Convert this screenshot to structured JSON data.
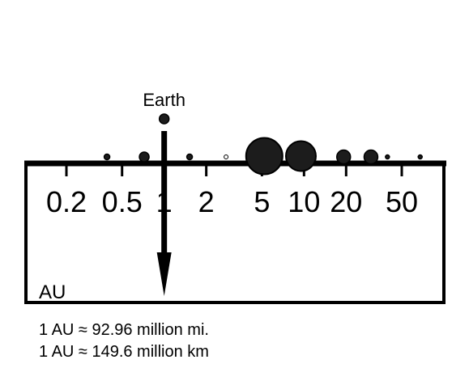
{
  "diagram": {
    "earth_label": "Earth",
    "unit_label": "AU",
    "scale": "log",
    "axis_range_au": [
      0.1,
      100
    ],
    "ticks": [
      {
        "value": 0.2,
        "label": "0.2"
      },
      {
        "value": 0.5,
        "label": "0.5"
      },
      {
        "value": 1,
        "label": "1"
      },
      {
        "value": 2,
        "label": "2"
      },
      {
        "value": 5,
        "label": "5"
      },
      {
        "value": 10,
        "label": "10"
      },
      {
        "value": 20,
        "label": "20"
      },
      {
        "value": 50,
        "label": "50"
      }
    ],
    "earth_distance_au": 1,
    "bodies": [
      {
        "distance_au": 0.39,
        "size": "small"
      },
      {
        "distance_au": 0.72,
        "size": "medium"
      },
      {
        "distance_au": 1.0,
        "size": "medium",
        "name": "earth"
      },
      {
        "distance_au": 1.52,
        "size": "small"
      },
      {
        "distance_au": 2.77,
        "size": "tiny",
        "hollow": true
      },
      {
        "distance_au": 5.2,
        "size": "huge"
      },
      {
        "distance_au": 9.5,
        "size": "large"
      },
      {
        "distance_au": 19.2,
        "size": "medium-large"
      },
      {
        "distance_au": 30.1,
        "size": "medium-large"
      },
      {
        "distance_au": 39.5,
        "size": "tiny"
      },
      {
        "distance_au": 67.7,
        "size": "tiny"
      }
    ],
    "colors": {
      "ink": "#000000",
      "body_fill": "#1c1c1c",
      "background": "#ffffff"
    }
  },
  "notes": {
    "line1": "1 AU ≈ 92.96 million mi.",
    "line2": "1 AU ≈ 149.6 million km"
  }
}
